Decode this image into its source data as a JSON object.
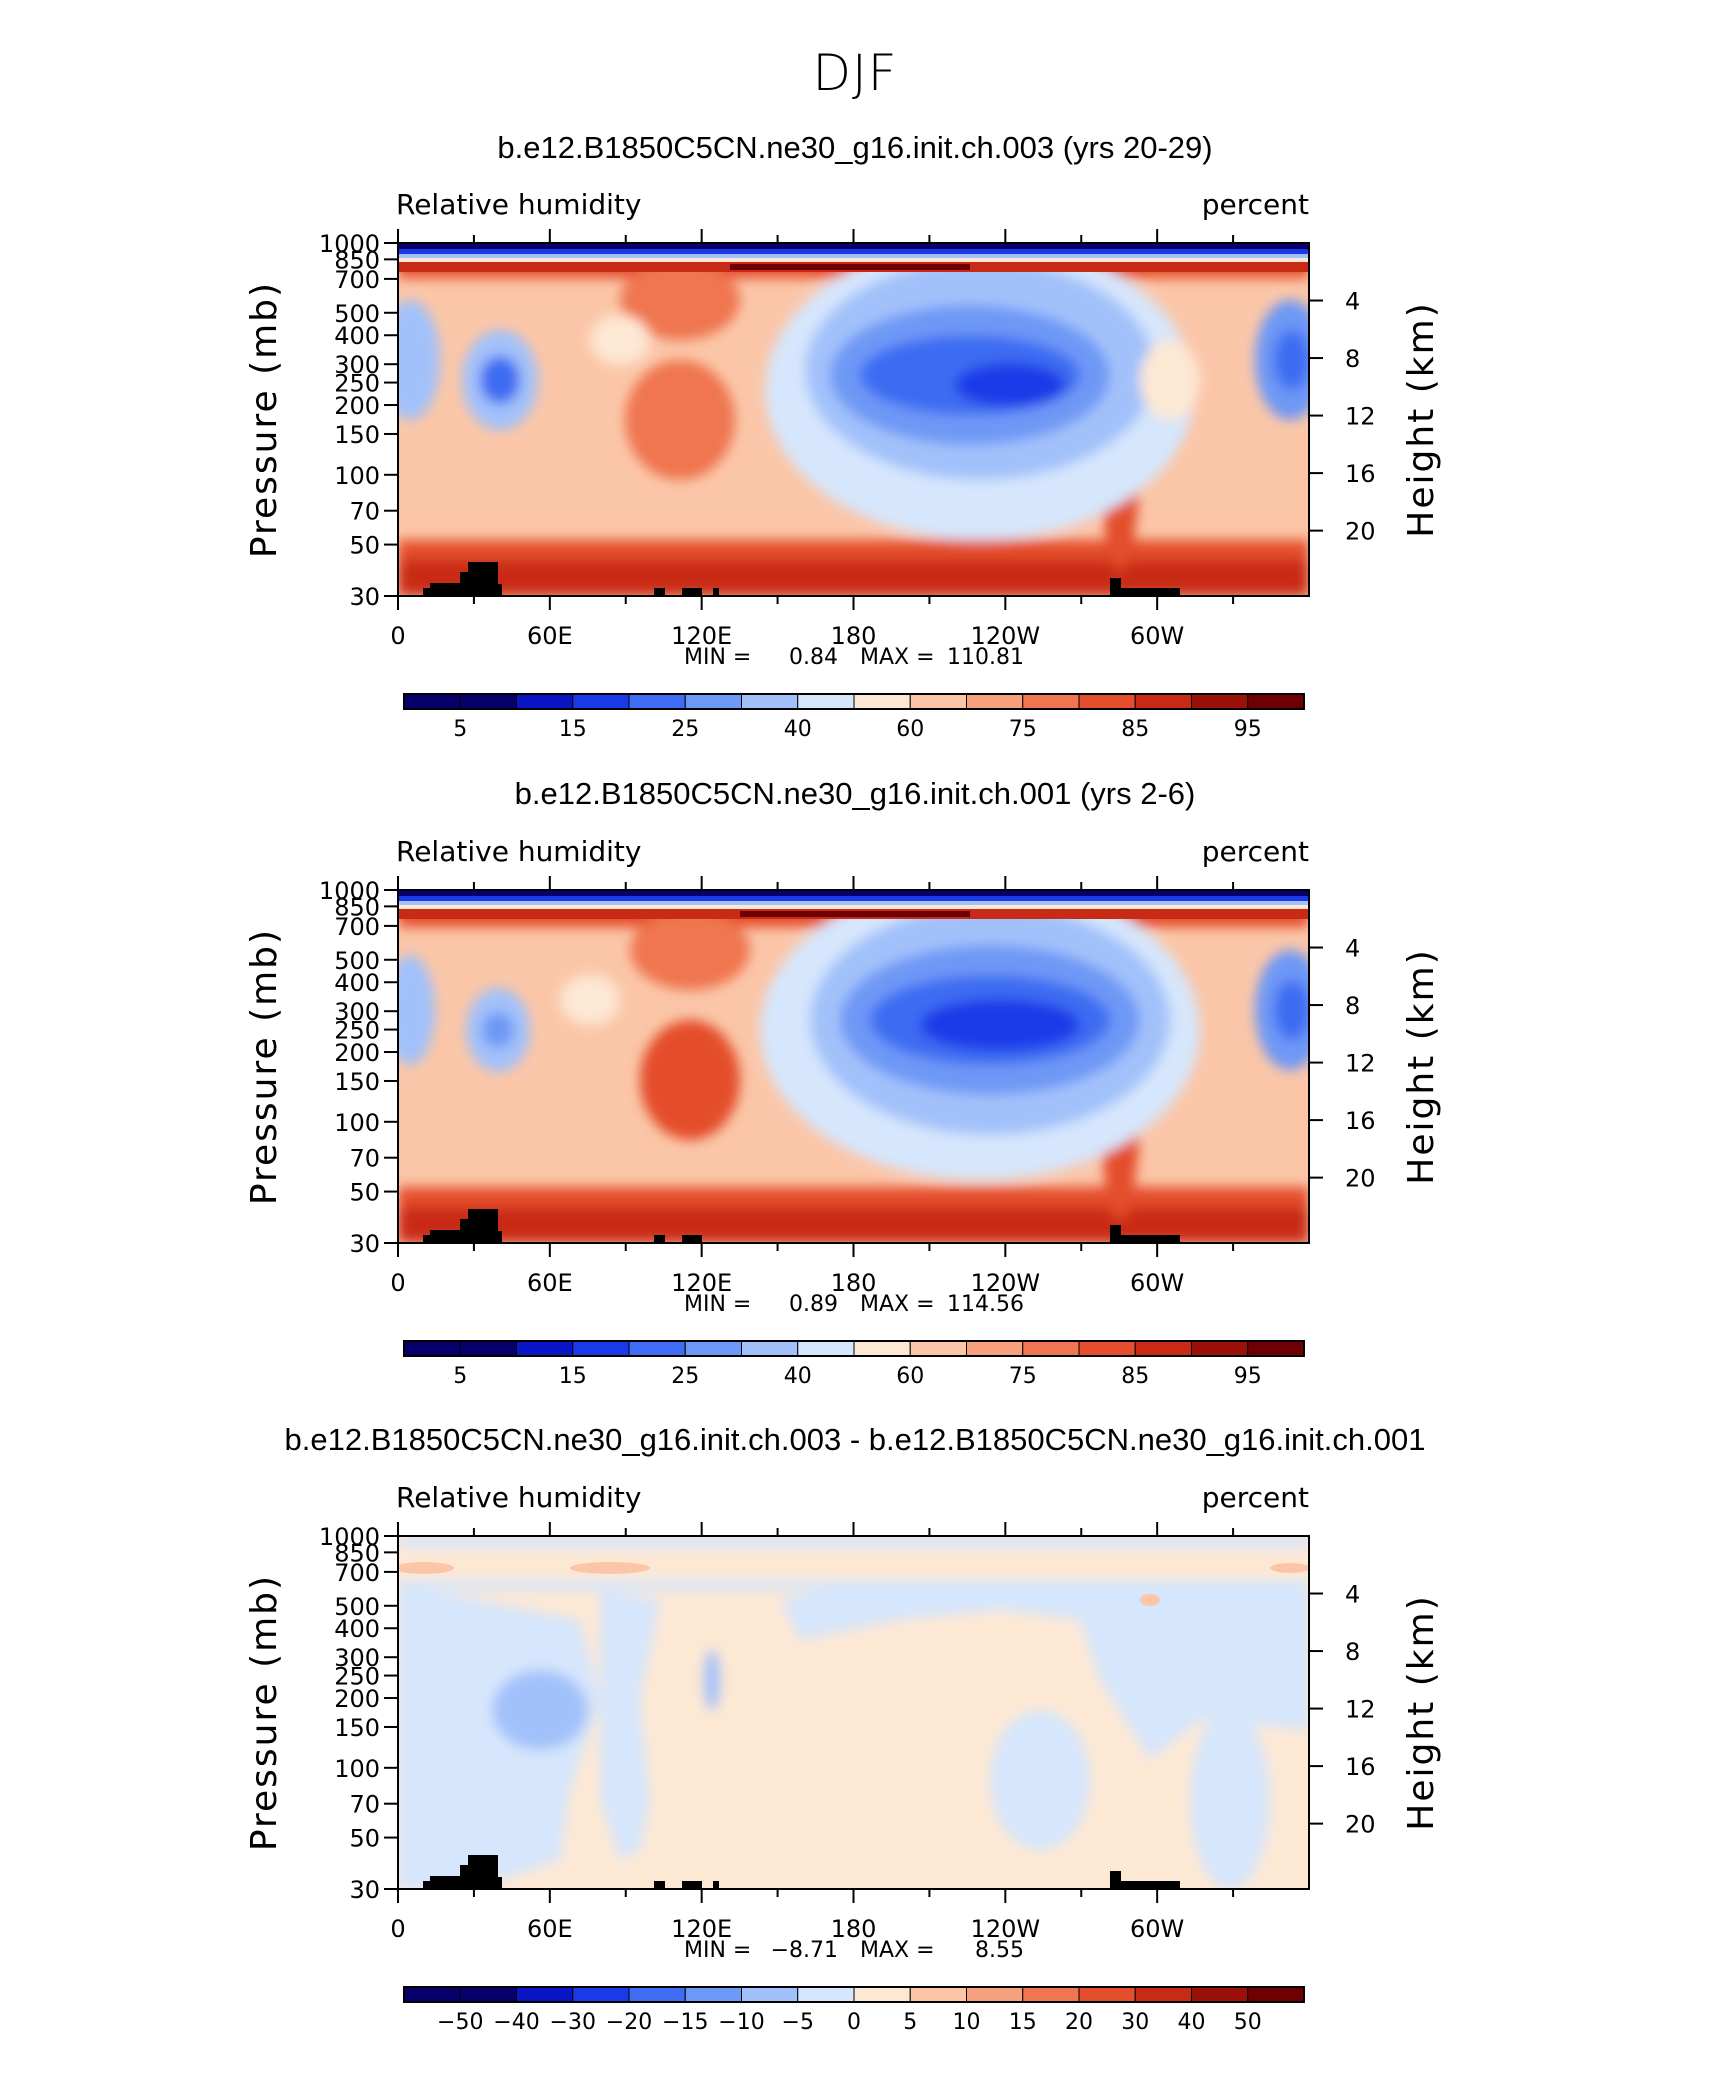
{
  "page_title": "DJF",
  "colors": {
    "rh_palette": [
      "#08006a",
      "#0a16c6",
      "#1a3ae8",
      "#3e6cf2",
      "#6e98f6",
      "#a2c1fa",
      "#d6e6fc",
      "#fde8d4",
      "#fbc6a8",
      "#f6a07e",
      "#ef7650",
      "#e44e2c",
      "#c92a16",
      "#9c100a",
      "#6e0003"
    ],
    "diff_palette": [
      "#08006a",
      "#0a16c6",
      "#1a3ae8",
      "#3e6cf2",
      "#6e98f6",
      "#a2c1fa",
      "#d6e6fc",
      "#fde8d4",
      "#fbc6a8",
      "#f6a07e",
      "#ef7650",
      "#e44e2c",
      "#c92a16",
      "#9c100a",
      "#6e0003"
    ],
    "terrain": "#000000"
  },
  "axes": {
    "left_label": "Pressure (mb)",
    "right_label": "Height (km)",
    "pressure_ticks": [
      "30",
      "50",
      "70",
      "100",
      "150",
      "200",
      "250",
      "300",
      "400",
      "500",
      "700",
      "850",
      "1000"
    ],
    "height_ticks": [
      "20",
      "16",
      "12",
      "8",
      "4"
    ],
    "lon_ticks": [
      "0",
      "60E",
      "120E",
      "180",
      "120W",
      "60W"
    ]
  },
  "chart_data": [
    {
      "type": "heatmap",
      "title": "b.e12.B1850C5CN.ne30_g16.init.ch.003 (yrs 20-29)",
      "left_string": "Relative humidity",
      "right_string": "percent",
      "min_label": "MIN =",
      "min_value": "0.84",
      "max_label": "MAX =",
      "max_value": "110.81",
      "xlabel": "",
      "ylabel": "Pressure (mb)",
      "y2label": "Height (km)",
      "colorbar_labels": [
        "5",
        "15",
        "25",
        "40",
        "60",
        "75",
        "85",
        "95"
      ],
      "colorbar_levels": [
        5,
        10,
        15,
        20,
        25,
        30,
        40,
        50,
        60,
        70,
        75,
        80,
        85,
        90,
        95
      ],
      "grid": false,
      "ylim": [
        1000,
        30
      ],
      "xlim": [
        0,
        360
      ]
    },
    {
      "type": "heatmap",
      "title": "b.e12.B1850C5CN.ne30_g16.init.ch.001 (yrs 2-6)",
      "left_string": "Relative humidity",
      "right_string": "percent",
      "min_label": "MIN =",
      "min_value": "0.89",
      "max_label": "MAX =",
      "max_value": "114.56",
      "xlabel": "",
      "ylabel": "Pressure (mb)",
      "y2label": "Height (km)",
      "colorbar_labels": [
        "5",
        "15",
        "25",
        "40",
        "60",
        "75",
        "85",
        "95"
      ],
      "colorbar_levels": [
        5,
        10,
        15,
        20,
        25,
        30,
        40,
        50,
        60,
        70,
        75,
        80,
        85,
        90,
        95
      ],
      "grid": false,
      "ylim": [
        1000,
        30
      ],
      "xlim": [
        0,
        360
      ]
    },
    {
      "type": "heatmap",
      "title": "b.e12.B1850C5CN.ne30_g16.init.ch.003 - b.e12.B1850C5CN.ne30_g16.init.ch.001",
      "left_string": "Relative humidity",
      "right_string": "percent",
      "min_label": "MIN =",
      "min_value": "−8.71",
      "max_label": "MAX =",
      "max_value": "8.55",
      "xlabel": "",
      "ylabel": "Pressure (mb)",
      "y2label": "Height (km)",
      "colorbar_labels": [
        "−50",
        "−40",
        "−30",
        "−20",
        "−15",
        "−10",
        "−5",
        "0",
        "5",
        "10",
        "15",
        "20",
        "30",
        "40",
        "50"
      ],
      "colorbar_levels": [
        -50,
        -40,
        -30,
        -20,
        -15,
        -10,
        -5,
        0,
        5,
        10,
        15,
        20,
        30,
        40,
        50
      ],
      "grid": false,
      "ylim": [
        1000,
        30
      ],
      "xlim": [
        0,
        360
      ]
    }
  ]
}
